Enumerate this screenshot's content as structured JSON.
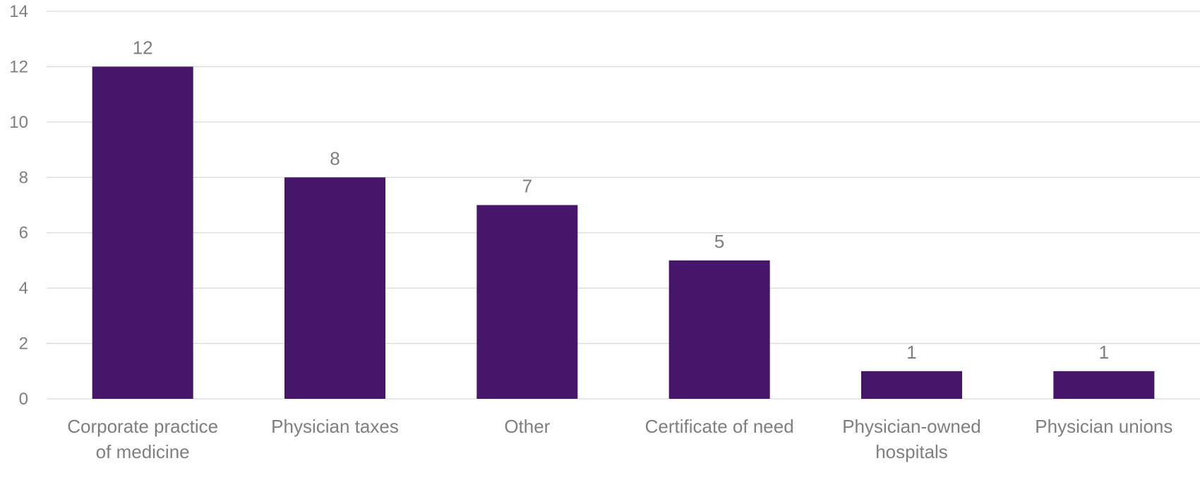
{
  "chart_data": {
    "type": "bar",
    "title": "",
    "xlabel": "",
    "ylabel": "",
    "categories": [
      "Corporate practice of medicine",
      "Physician taxes",
      "Other",
      "Certificate of need",
      "Physician-owned hospitals",
      "Physician unions"
    ],
    "category_lines": [
      [
        "Corporate practice",
        "of medicine"
      ],
      [
        "Physician taxes"
      ],
      [
        "Other"
      ],
      [
        "Certificate of need"
      ],
      [
        "Physician-owned",
        "hospitals"
      ],
      [
        "Physician unions"
      ]
    ],
    "values": [
      12,
      8,
      7,
      5,
      1,
      1
    ],
    "ylim": [
      0,
      14
    ],
    "yticks": [
      0,
      2,
      4,
      6,
      8,
      10,
      12,
      14
    ],
    "grid": true,
    "legend": "none",
    "data_labels": true,
    "bar_color": "#46166b"
  }
}
